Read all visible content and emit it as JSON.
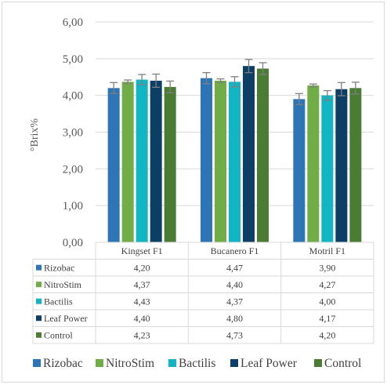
{
  "chart_data": {
    "type": "bar",
    "ylabel": "°Brix%",
    "ylim": [
      0,
      6
    ],
    "yticks": [
      "0,00",
      "1,00",
      "2,00",
      "3,00",
      "4,00",
      "5,00",
      "6,00"
    ],
    "categories": [
      "Kingset F1",
      "Bucanero F1",
      "Motril F1"
    ],
    "series": [
      {
        "name": "Rizobac",
        "color": "#2e75b6",
        "values": [
          4.2,
          4.47,
          3.9
        ],
        "labels": [
          "4,20",
          "4,47",
          "3,90"
        ],
        "errors": [
          0.15,
          0.15,
          0.15
        ]
      },
      {
        "name": "NitroStim",
        "color": "#70ad47",
        "values": [
          4.37,
          4.4,
          4.27
        ],
        "labels": [
          "4,37",
          "4,40",
          "4,27"
        ],
        "errors": [
          0.05,
          0.05,
          0.04
        ]
      },
      {
        "name": "Bactilis",
        "color": "#12b5c4",
        "values": [
          4.43,
          4.37,
          4.0
        ],
        "labels": [
          "4,43",
          "4,37",
          "4,00"
        ],
        "errors": [
          0.14,
          0.14,
          0.13
        ]
      },
      {
        "name": "Leaf Power",
        "color": "#0d3e66",
        "values": [
          4.4,
          4.8,
          4.17
        ],
        "labels": [
          "4,40",
          "4,80",
          "4,17"
        ],
        "errors": [
          0.18,
          0.18,
          0.18
        ]
      },
      {
        "name": "Control",
        "color": "#4a7c34",
        "values": [
          4.23,
          4.73,
          4.2
        ],
        "labels": [
          "4,23",
          "4,73",
          "4,20"
        ],
        "errors": [
          0.16,
          0.16,
          0.16
        ]
      }
    ],
    "grid": true,
    "legend": "bottom",
    "data_table": true
  }
}
